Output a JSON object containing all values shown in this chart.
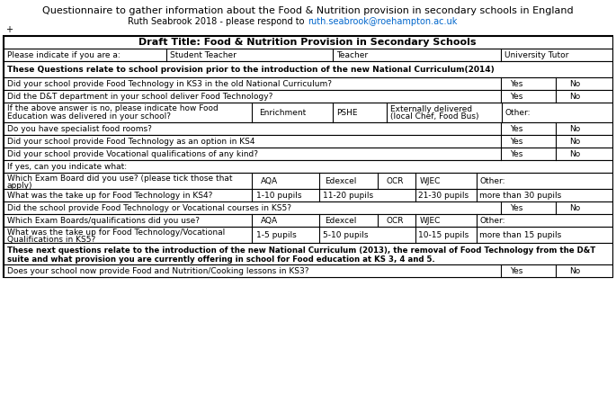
{
  "title": "Questionnaire to gather information about the Food & Nutrition provision in secondary schools in England",
  "subtitle_prefix": "Ruth Seabrook 2018 - please respond to ",
  "subtitle_link": "ruth.seabrook@roehampton.ac.uk",
  "table_title": "Draft Title: Food & Nutrition Provision in Secondary Schools",
  "background": "#ffffff",
  "fig_width": 6.85,
  "fig_height": 4.48
}
